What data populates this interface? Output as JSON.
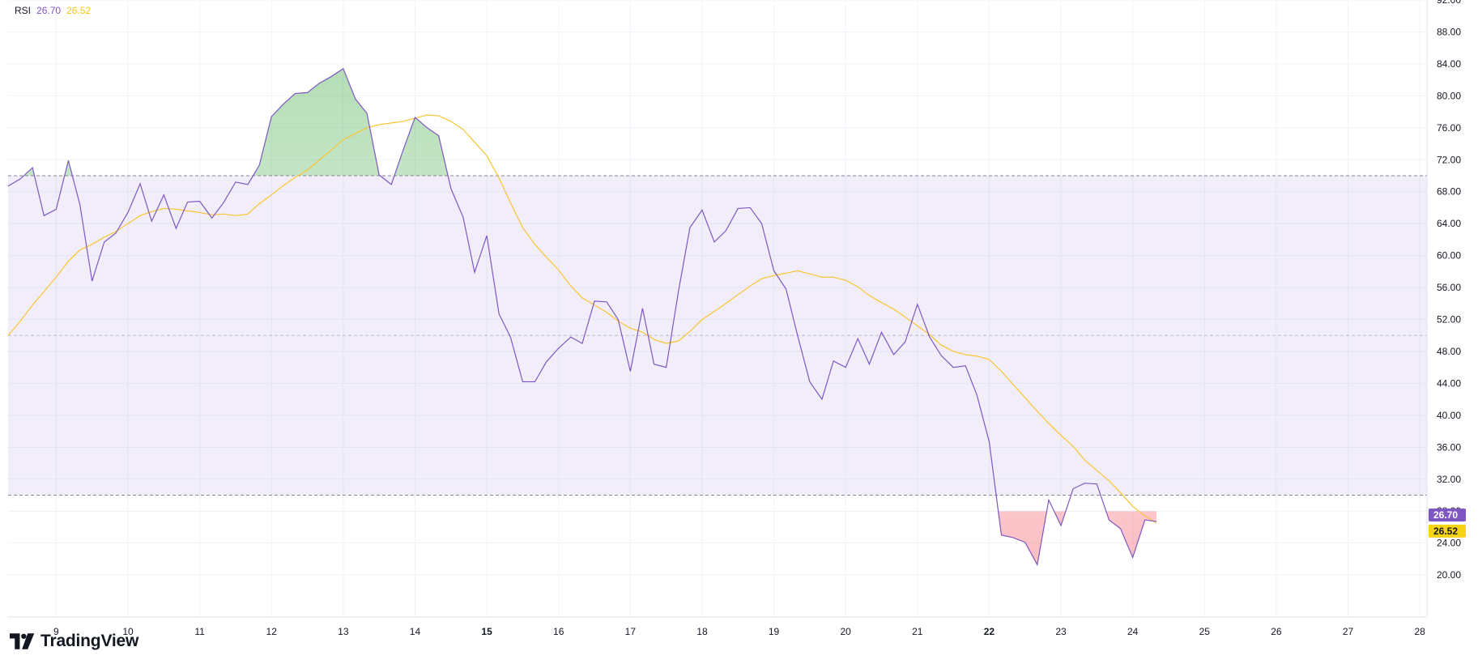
{
  "legend": {
    "indicator": "RSI",
    "rsi_value": "26.70",
    "ma_value": "26.52"
  },
  "brand": {
    "name": "TradingView"
  },
  "colors": {
    "rsi_line": "#7e57c2",
    "ma_line": "#f7c533",
    "band_fill": "#7e57c2",
    "overbought_fill": "#4caf50",
    "oversold_fill": "#f23645",
    "grid": "#f0f3fa",
    "axis_text": "#131722",
    "rsi_badge": "#7e57c2",
    "ma_badge": "#f5d315"
  },
  "chart_data": {
    "type": "line",
    "ylim": [
      19,
      92
    ],
    "xlim": [
      8.33,
      28.1
    ],
    "y_ticks": [
      "20.00",
      "24.00",
      "28.00",
      "32.00",
      "36.00",
      "40.00",
      "44.00",
      "48.00",
      "52.00",
      "56.00",
      "60.00",
      "64.00",
      "68.00",
      "72.00",
      "76.00",
      "80.00",
      "84.00",
      "88.00",
      "92.00"
    ],
    "x_ticks": [
      {
        "value": 9,
        "label": "9",
        "bold": false
      },
      {
        "value": 10,
        "label": "10",
        "bold": false
      },
      {
        "value": 11,
        "label": "11",
        "bold": false
      },
      {
        "value": 12,
        "label": "12",
        "bold": false
      },
      {
        "value": 13,
        "label": "13",
        "bold": false
      },
      {
        "value": 14,
        "label": "14",
        "bold": false
      },
      {
        "value": 15,
        "label": "15",
        "bold": true
      },
      {
        "value": 16,
        "label": "16",
        "bold": false
      },
      {
        "value": 17,
        "label": "17",
        "bold": false
      },
      {
        "value": 18,
        "label": "18",
        "bold": false
      },
      {
        "value": 19,
        "label": "19",
        "bold": false
      },
      {
        "value": 20,
        "label": "20",
        "bold": false
      },
      {
        "value": 21,
        "label": "21",
        "bold": false
      },
      {
        "value": 22,
        "label": "22",
        "bold": true
      },
      {
        "value": 23,
        "label": "23",
        "bold": false
      },
      {
        "value": 24,
        "label": "24",
        "bold": false
      },
      {
        "value": 25,
        "label": "25",
        "bold": false
      },
      {
        "value": 26,
        "label": "26",
        "bold": false
      },
      {
        "value": 27,
        "label": "27",
        "bold": false
      },
      {
        "value": 28,
        "label": "28",
        "bold": false
      }
    ],
    "bands": {
      "upper": 70,
      "middle": 50,
      "lower": 30
    },
    "series": [
      {
        "role": "rsi",
        "points": [
          [
            8.33,
            68.7
          ],
          [
            8.5,
            69.6
          ],
          [
            8.67,
            71.0
          ],
          [
            8.83,
            65.0
          ],
          [
            9.0,
            65.8
          ],
          [
            9.17,
            71.9
          ],
          [
            9.33,
            66.4
          ],
          [
            9.5,
            56.8
          ],
          [
            9.67,
            61.7
          ],
          [
            9.83,
            62.8
          ],
          [
            10.0,
            65.4
          ],
          [
            10.17,
            69.0
          ],
          [
            10.33,
            64.3
          ],
          [
            10.5,
            67.6
          ],
          [
            10.67,
            63.4
          ],
          [
            10.83,
            66.7
          ],
          [
            11.0,
            66.8
          ],
          [
            11.17,
            64.7
          ],
          [
            11.33,
            66.6
          ],
          [
            11.5,
            69.2
          ],
          [
            11.67,
            68.9
          ],
          [
            11.83,
            71.3
          ],
          [
            12.0,
            77.4
          ],
          [
            12.17,
            79.0
          ],
          [
            12.33,
            80.3
          ],
          [
            12.5,
            80.4
          ],
          [
            12.67,
            81.6
          ],
          [
            12.83,
            82.4
          ],
          [
            13.0,
            83.4
          ],
          [
            13.17,
            79.6
          ],
          [
            13.33,
            77.8
          ],
          [
            13.5,
            70.1
          ],
          [
            13.67,
            68.9
          ],
          [
            13.83,
            73.1
          ],
          [
            14.0,
            77.3
          ],
          [
            14.17,
            76.0
          ],
          [
            14.33,
            75.0
          ],
          [
            14.5,
            68.4
          ],
          [
            14.67,
            64.8
          ],
          [
            14.83,
            57.9
          ],
          [
            15.0,
            62.5
          ],
          [
            15.17,
            52.7
          ],
          [
            15.33,
            49.8
          ],
          [
            15.5,
            44.2
          ],
          [
            15.67,
            44.2
          ],
          [
            15.83,
            46.7
          ],
          [
            16.0,
            48.4
          ],
          [
            16.17,
            49.8
          ],
          [
            16.33,
            49.0
          ],
          [
            16.5,
            54.3
          ],
          [
            16.67,
            54.2
          ],
          [
            16.83,
            52.0
          ],
          [
            17.0,
            45.5
          ],
          [
            17.17,
            53.4
          ],
          [
            17.33,
            46.4
          ],
          [
            17.5,
            46.0
          ],
          [
            17.67,
            55.5
          ],
          [
            17.83,
            63.5
          ],
          [
            18.0,
            65.7
          ],
          [
            18.17,
            61.7
          ],
          [
            18.33,
            63.1
          ],
          [
            18.5,
            65.9
          ],
          [
            18.67,
            66.0
          ],
          [
            18.83,
            64.0
          ],
          [
            19.0,
            58.1
          ],
          [
            19.17,
            55.8
          ],
          [
            19.33,
            50.0
          ],
          [
            19.5,
            44.2
          ],
          [
            19.67,
            42.0
          ],
          [
            19.83,
            46.8
          ],
          [
            20.0,
            46.0
          ],
          [
            20.17,
            49.6
          ],
          [
            20.33,
            46.4
          ],
          [
            20.5,
            50.4
          ],
          [
            20.67,
            47.6
          ],
          [
            20.83,
            49.2
          ],
          [
            21.0,
            53.9
          ],
          [
            21.17,
            49.8
          ],
          [
            21.33,
            47.5
          ],
          [
            21.5,
            46.0
          ],
          [
            21.67,
            46.2
          ],
          [
            21.83,
            42.5
          ],
          [
            22.0,
            36.7
          ],
          [
            22.17,
            25.0
          ],
          [
            22.33,
            24.7
          ],
          [
            22.5,
            24.1
          ],
          [
            22.67,
            21.3
          ],
          [
            22.83,
            29.4
          ],
          [
            23.0,
            26.2
          ],
          [
            23.17,
            30.8
          ],
          [
            23.33,
            31.5
          ],
          [
            23.5,
            31.4
          ],
          [
            23.67,
            26.9
          ],
          [
            23.83,
            25.8
          ],
          [
            24.0,
            22.2
          ],
          [
            24.17,
            26.9
          ],
          [
            24.33,
            26.7
          ]
        ]
      },
      {
        "role": "ma",
        "points": [
          [
            8.33,
            50.0
          ],
          [
            8.5,
            51.8
          ],
          [
            8.67,
            53.8
          ],
          [
            8.83,
            55.5
          ],
          [
            9.0,
            57.3
          ],
          [
            9.17,
            59.3
          ],
          [
            9.33,
            60.7
          ],
          [
            9.5,
            61.4
          ],
          [
            9.67,
            62.3
          ],
          [
            9.83,
            63.0
          ],
          [
            10.0,
            64.0
          ],
          [
            10.17,
            65.0
          ],
          [
            10.33,
            65.5
          ],
          [
            10.5,
            65.9
          ],
          [
            10.67,
            65.8
          ],
          [
            10.83,
            65.6
          ],
          [
            11.0,
            65.4
          ],
          [
            11.17,
            65.1
          ],
          [
            11.33,
            65.2
          ],
          [
            11.5,
            65.0
          ],
          [
            11.67,
            65.2
          ],
          [
            11.83,
            66.5
          ],
          [
            12.0,
            67.6
          ],
          [
            12.17,
            68.8
          ],
          [
            12.33,
            69.8
          ],
          [
            12.5,
            70.7
          ],
          [
            12.67,
            72.0
          ],
          [
            12.83,
            73.2
          ],
          [
            13.0,
            74.5
          ],
          [
            13.17,
            75.3
          ],
          [
            13.33,
            76.0
          ],
          [
            13.5,
            76.4
          ],
          [
            13.67,
            76.6
          ],
          [
            13.83,
            76.8
          ],
          [
            14.0,
            77.2
          ],
          [
            14.17,
            77.6
          ],
          [
            14.33,
            77.5
          ],
          [
            14.5,
            76.8
          ],
          [
            14.67,
            75.8
          ],
          [
            14.83,
            74.2
          ],
          [
            15.0,
            72.5
          ],
          [
            15.17,
            69.7
          ],
          [
            15.33,
            66.6
          ],
          [
            15.5,
            63.5
          ],
          [
            15.67,
            61.4
          ],
          [
            15.83,
            59.8
          ],
          [
            16.0,
            58.2
          ],
          [
            16.17,
            56.2
          ],
          [
            16.33,
            54.7
          ],
          [
            16.5,
            53.8
          ],
          [
            16.67,
            52.9
          ],
          [
            16.83,
            51.8
          ],
          [
            17.0,
            50.9
          ],
          [
            17.17,
            50.4
          ],
          [
            17.33,
            49.5
          ],
          [
            17.5,
            49.0
          ],
          [
            17.67,
            49.3
          ],
          [
            17.83,
            50.5
          ],
          [
            18.0,
            52.0
          ],
          [
            18.17,
            53.0
          ],
          [
            18.33,
            54.0
          ],
          [
            18.5,
            55.1
          ],
          [
            18.67,
            56.2
          ],
          [
            18.83,
            57.1
          ],
          [
            19.0,
            57.5
          ],
          [
            19.17,
            57.8
          ],
          [
            19.33,
            58.1
          ],
          [
            19.5,
            57.7
          ],
          [
            19.67,
            57.3
          ],
          [
            19.83,
            57.3
          ],
          [
            20.0,
            56.9
          ],
          [
            20.17,
            56.1
          ],
          [
            20.33,
            55.0
          ],
          [
            20.5,
            54.1
          ],
          [
            20.67,
            53.3
          ],
          [
            20.83,
            52.3
          ],
          [
            21.0,
            51.2
          ],
          [
            21.17,
            50.1
          ],
          [
            21.33,
            48.8
          ],
          [
            21.5,
            48.0
          ],
          [
            21.67,
            47.6
          ],
          [
            21.83,
            47.4
          ],
          [
            22.0,
            47.0
          ],
          [
            22.17,
            45.5
          ],
          [
            22.33,
            43.9
          ],
          [
            22.5,
            42.2
          ],
          [
            22.67,
            40.5
          ],
          [
            22.83,
            39.0
          ],
          [
            23.0,
            37.5
          ],
          [
            23.17,
            36.1
          ],
          [
            23.33,
            34.4
          ],
          [
            23.5,
            33.1
          ],
          [
            23.67,
            31.8
          ],
          [
            23.83,
            30.3
          ],
          [
            24.0,
            28.6
          ],
          [
            24.17,
            27.4
          ],
          [
            24.33,
            26.52
          ]
        ]
      }
    ]
  }
}
